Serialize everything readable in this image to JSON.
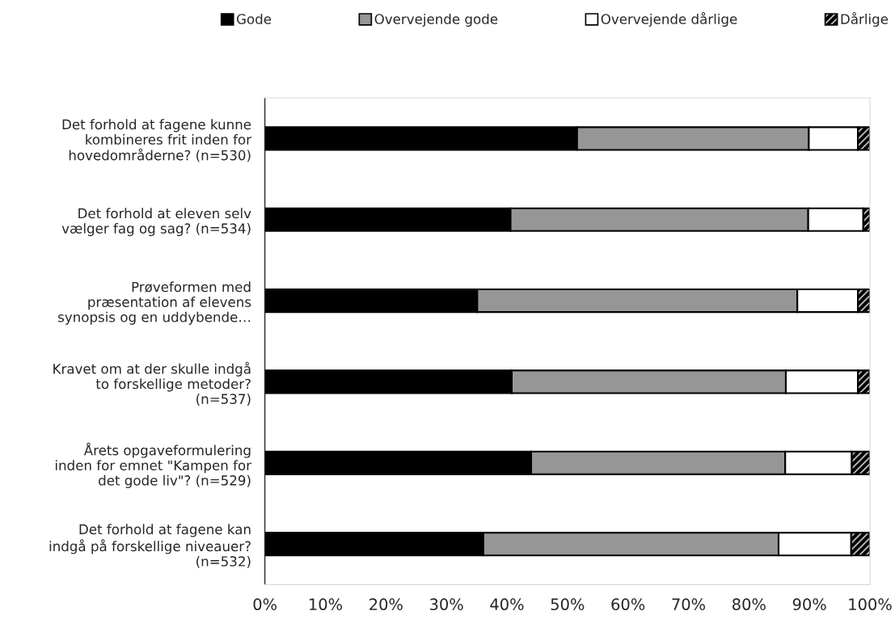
{
  "chart_data": {
    "type": "bar",
    "orientation": "horizontal",
    "stacked": true,
    "categories": [
      "Det forhold at fagene kunne\nkombineres frit inden for\nhovedområderne? (n=530)",
      "Det forhold at eleven selv\nvælger fag og sag? (n=534)",
      "Prøveformen med\npræsentation af elevens\nsynopsis og en uddybende…",
      "Kravet om at der skulle indgå\nto forskellige metoder?\n(n=537)",
      "Årets opgaveformulering\ninden for emnet \"Kampen for\ndet gode liv\"? (n=529)",
      "Det forhold at fagene kan\nindgå på forskellige niveauer?\n(n=532)"
    ],
    "series": [
      {
        "name": "Gode",
        "color": "#000000",
        "values": [
          51.6,
          40.6,
          35.1,
          40.8,
          44.0,
          36.1
        ]
      },
      {
        "name": "Overvejende gode",
        "color": "#969696",
        "values": [
          38.3,
          49.2,
          52.9,
          45.3,
          42.0,
          48.8
        ]
      },
      {
        "name": "Overvejende dårlige",
        "color": "#ffffff",
        "values": [
          8.1,
          9.1,
          10.0,
          11.9,
          11.0,
          12.0
        ]
      },
      {
        "name": "Dårlige",
        "color": "#000000",
        "values": [
          2.0,
          1.1,
          2.0,
          2.0,
          3.0,
          3.1
        ]
      }
    ],
    "xlim": [
      0,
      100
    ],
    "xticks": [
      {
        "value": 0,
        "label": "0%"
      },
      {
        "value": 10,
        "label": "10%"
      },
      {
        "value": 20,
        "label": "20%"
      },
      {
        "value": 30,
        "label": "30%"
      },
      {
        "value": 40,
        "label": "40%"
      },
      {
        "value": 50,
        "label": "50%"
      },
      {
        "value": 60,
        "label": "60%"
      },
      {
        "value": 70,
        "label": "70%"
      },
      {
        "value": 80,
        "label": "80%"
      },
      {
        "value": 90,
        "label": "90%"
      },
      {
        "value": 100,
        "label": "100%"
      }
    ],
    "grid": false,
    "legend": "top"
  }
}
